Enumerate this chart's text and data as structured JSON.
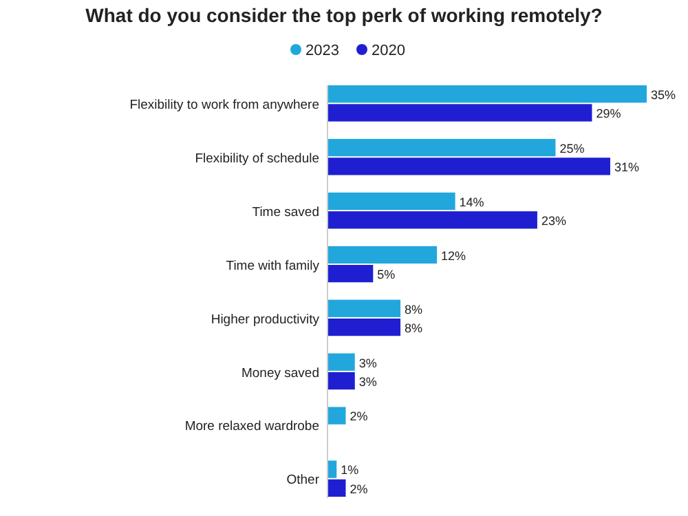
{
  "chart_data": {
    "type": "bar",
    "orientation": "horizontal",
    "title": "What do you consider the top perk of working remotely?",
    "categories": [
      "Flexibility to work from anywhere",
      "Flexibility of schedule",
      "Time saved",
      "Time with family",
      "Higher productivity",
      "Money saved",
      "More relaxed wardrobe",
      "Other"
    ],
    "series": [
      {
        "name": "2023",
        "color": "#22a7dc",
        "values": [
          35,
          25,
          14,
          12,
          8,
          3,
          2,
          1
        ],
        "value_labels": [
          "35%",
          "25%",
          "14%",
          "12%",
          "8%",
          "3%",
          "2%",
          "1%"
        ]
      },
      {
        "name": "2020",
        "color": "#1f1fd1",
        "values": [
          29,
          31,
          23,
          5,
          8,
          3,
          null,
          2
        ],
        "value_labels": [
          "29%",
          "31%",
          "23%",
          "5%",
          "8%",
          "3%",
          null,
          "2%"
        ]
      }
    ],
    "legend": "top",
    "grid": false
  }
}
